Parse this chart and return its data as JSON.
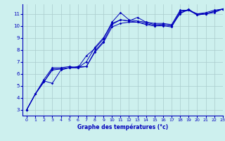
{
  "title": "Graphe des températures (°c)",
  "background_color": "#cdf0ee",
  "grid_color": "#aacccc",
  "line_color": "#0000bb",
  "xlim": [
    -0.5,
    23
  ],
  "ylim": [
    2.5,
    11.8
  ],
  "xticks": [
    0,
    1,
    2,
    3,
    4,
    5,
    6,
    7,
    8,
    9,
    10,
    11,
    12,
    13,
    14,
    15,
    16,
    17,
    18,
    19,
    20,
    21,
    22,
    23
  ],
  "yticks": [
    3,
    4,
    5,
    6,
    7,
    8,
    9,
    10,
    11
  ],
  "series": [
    [
      3.0,
      4.3,
      5.4,
      5.2,
      6.3,
      6.5,
      6.5,
      6.6,
      7.8,
      8.6,
      9.9,
      10.2,
      10.3,
      10.3,
      10.1,
      10.0,
      10.1,
      10.0,
      11.2,
      11.3,
      11.0,
      11.0,
      11.2,
      11.4
    ],
    [
      3.0,
      4.3,
      5.5,
      6.5,
      6.5,
      6.6,
      6.5,
      7.0,
      8.2,
      9.0,
      10.2,
      10.5,
      10.4,
      10.7,
      10.3,
      10.2,
      10.2,
      10.1,
      11.3,
      11.3,
      11.0,
      11.1,
      11.3,
      11.4
    ],
    [
      3.0,
      4.3,
      5.3,
      6.3,
      6.4,
      6.5,
      6.5,
      7.5,
      8.1,
      8.9,
      10.3,
      11.1,
      10.5,
      10.4,
      10.3,
      10.1,
      10.1,
      10.0,
      11.0,
      11.4,
      10.9,
      11.0,
      11.1,
      11.4
    ],
    [
      3.0,
      4.3,
      5.3,
      6.4,
      6.4,
      6.5,
      6.6,
      6.6,
      7.9,
      8.7,
      10.1,
      10.5,
      10.4,
      10.3,
      10.2,
      10.0,
      10.0,
      9.9,
      11.1,
      11.3,
      10.9,
      11.0,
      11.2,
      11.4
    ]
  ]
}
